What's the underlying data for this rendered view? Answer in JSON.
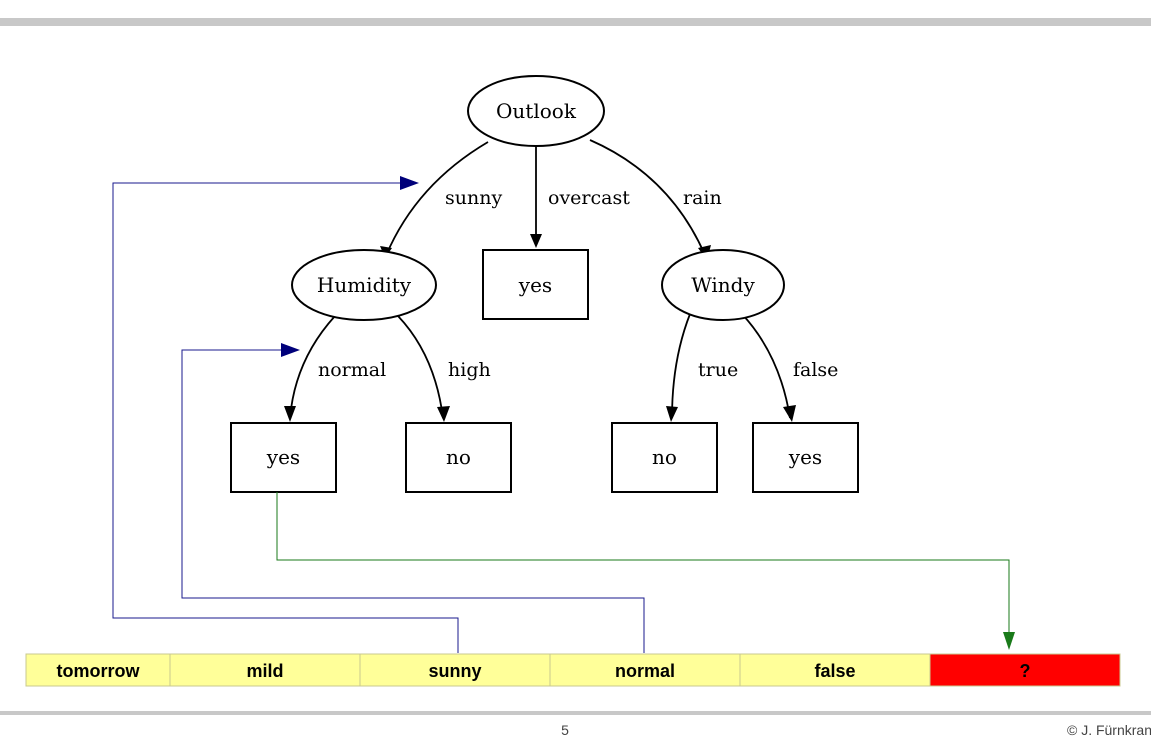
{
  "tree": {
    "root": {
      "label": "Outlook"
    },
    "internal": {
      "humidity": "Humidity",
      "windy": "Windy"
    },
    "leaves": {
      "overcast_yes": "yes",
      "normal_yes": "yes",
      "high_no": "no",
      "true_no": "no",
      "false_yes": "yes"
    },
    "edges": {
      "sunny": "sunny",
      "overcast": "overcast",
      "rain": "rain",
      "normal": "normal",
      "high": "high",
      "true": "true",
      "false": "false"
    }
  },
  "example_row": {
    "cells": [
      "tomorrow",
      "mild",
      "sunny",
      "normal",
      "false",
      "?"
    ],
    "cell_colors": [
      "#ffff99",
      "#ffff99",
      "#ffff99",
      "#ffff99",
      "#ffff99",
      "#ff0000"
    ]
  },
  "colors": {
    "path_line": "#1a1a8c",
    "result_line": "#1a7a1a"
  },
  "footer": {
    "page": "5",
    "copyright": "© J. Fürnkranz"
  }
}
